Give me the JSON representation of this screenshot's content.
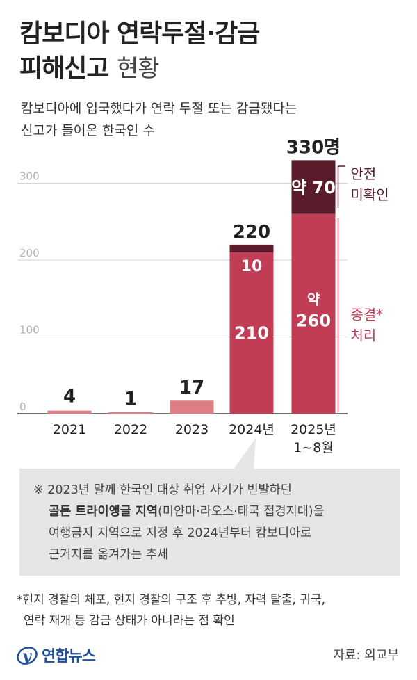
{
  "title": {
    "line1": "캄보디아 연락두절·감금",
    "line2_bold": "피해신고",
    "line2_light": "현황"
  },
  "subtitle": {
    "line1": "캄보디아에 입국했다가 연락 두절 또는 감금됐다는",
    "line2": "신고가 들어온 한국인 수"
  },
  "chart_data": {
    "type": "bar",
    "title": "캄보디아 연락두절·감금 피해신고 현황",
    "ylim": [
      0,
      330
    ],
    "yticks": [
      0,
      100,
      200,
      300
    ],
    "grid": true,
    "categories": [
      "2021",
      "2022",
      "2023",
      "2024년",
      "2025년\n1~8월"
    ],
    "totals": [
      4,
      1,
      17,
      220,
      330
    ],
    "total_labels": [
      "4",
      "1",
      "17",
      "220",
      "330명"
    ],
    "series": [
      {
        "name": "종결*처리",
        "values": [
          null,
          null,
          null,
          210,
          260
        ],
        "labels": [
          "",
          "",
          "",
          "210",
          "약\n260"
        ],
        "color": "#c03d55"
      },
      {
        "name": "안전미확인",
        "values": [
          null,
          null,
          null,
          10,
          70
        ],
        "labels": [
          "",
          "",
          "",
          "10",
          "약 70"
        ],
        "color": "#5a1c2a"
      }
    ],
    "single_color": "#e07e86",
    "legend": [
      {
        "text": "안전\n미확인",
        "color": "#5a1c2a"
      },
      {
        "text": "종결*\n처리",
        "color": "#c03d55"
      }
    ]
  },
  "note": {
    "mark": "※",
    "line1": "2023년 말께 한국인 대상 취업 사기가 빈발하던",
    "line2_bold": "골든 트라이앵글 지역",
    "line2_rest": "(미얀마·라오스·태국 접경지대)을",
    "line3": "여행금지 지역으로 지정 후 2024년부터 캄보디아로",
    "line4": "근거지를 옮겨가는 추세"
  },
  "footnote": {
    "line1": "*현지 경찰의 체포, 현지 경찰의 구조 후 추방, 자력 탈출, 귀국,",
    "line2": "연락 재개 등 감금 상태가 아니라는 점 확인"
  },
  "logo": {
    "text": "연합뉴스"
  },
  "source": "자료: 외교부"
}
